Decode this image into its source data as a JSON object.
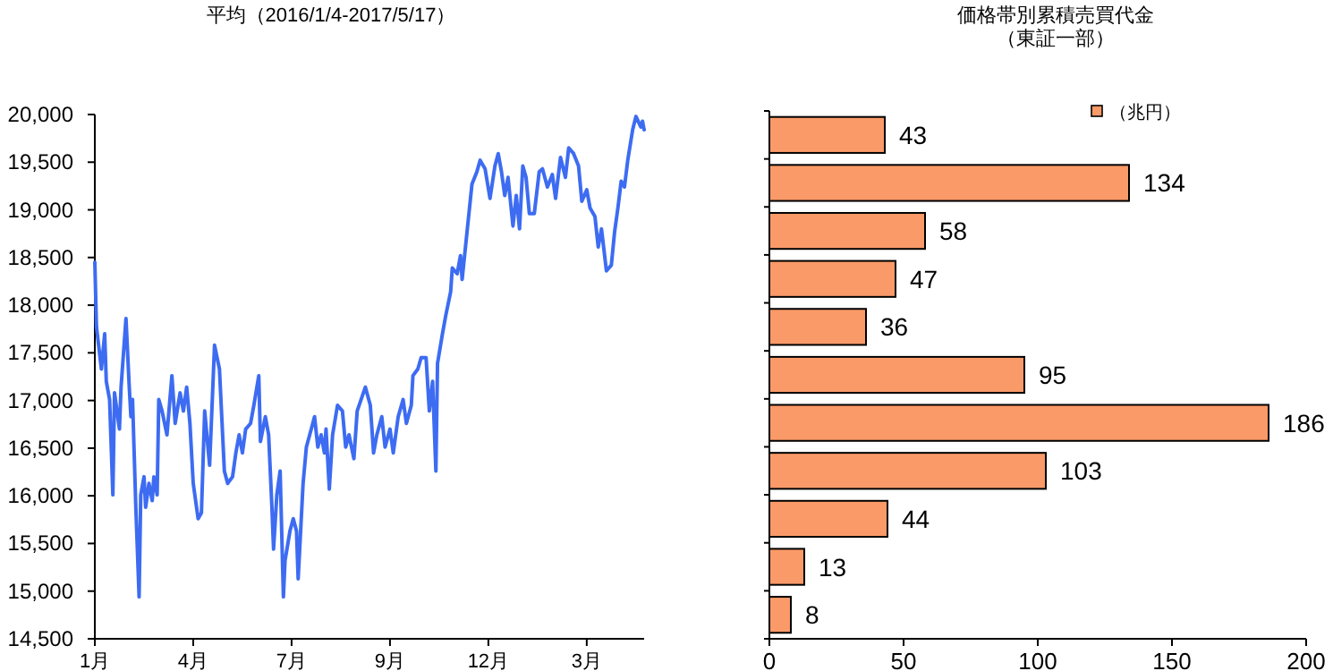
{
  "chart_data": [
    {
      "type": "line",
      "title": "平均（2016/1/4-2017/5/17）",
      "categories": [
        "1月",
        null,
        null,
        null,
        null,
        null,
        null,
        null,
        null,
        null,
        null,
        null,
        null,
        null,
        null,
        null,
        null,
        null,
        null,
        null,
        null,
        null,
        null,
        null,
        null,
        null,
        null,
        null,
        null,
        null,
        null,
        null,
        null,
        null,
        null,
        null,
        null,
        null,
        null,
        null,
        null,
        null,
        null,
        null,
        null,
        null,
        null,
        null,
        null,
        null,
        null,
        null,
        null,
        null,
        null,
        null,
        null,
        null,
        null,
        null,
        "4月",
        null,
        null,
        null,
        null,
        null,
        null,
        null,
        null,
        null,
        null,
        null,
        null,
        null,
        null,
        null,
        null,
        null,
        null,
        null,
        null,
        null,
        null,
        null,
        null,
        null,
        null,
        null,
        null,
        null,
        null,
        null,
        null,
        null,
        null,
        null,
        null,
        null,
        null,
        null,
        null,
        null,
        null,
        null,
        null,
        null,
        null,
        null,
        null,
        null,
        null,
        null,
        null,
        null,
        null,
        null,
        null,
        null,
        null,
        null,
        "7月",
        null,
        null,
        null,
        null,
        null,
        null,
        null,
        null,
        null,
        null,
        null,
        null,
        null,
        null,
        null,
        null,
        null,
        null,
        null,
        null,
        null,
        null,
        null,
        null,
        null,
        null,
        null,
        null,
        null,
        null,
        null,
        null,
        null,
        null,
        null,
        null,
        null,
        null,
        null,
        null,
        null,
        null,
        null,
        null,
        null,
        null,
        null,
        null,
        null,
        null,
        null,
        null,
        null,
        null,
        null,
        null,
        null,
        null,
        null,
        "9月",
        null,
        null,
        null,
        null,
        null,
        null,
        null,
        null,
        null,
        null,
        null,
        null,
        null,
        null,
        null,
        null,
        null,
        null,
        null,
        null,
        null,
        null,
        null,
        null,
        null,
        null,
        null,
        null,
        null,
        null,
        null,
        null,
        null,
        null,
        null,
        null,
        null,
        null,
        null,
        null,
        null,
        null,
        null,
        null,
        null,
        null,
        null,
        null,
        null,
        null,
        null,
        null,
        null,
        null,
        null,
        null,
        null,
        null,
        null,
        "12月",
        null,
        null,
        null,
        null,
        null,
        null,
        null,
        null,
        null,
        null,
        null,
        null,
        null,
        null,
        null,
        null,
        null,
        null,
        null,
        null,
        null,
        null,
        null,
        null,
        null,
        null,
        null,
        null,
        null,
        null,
        null,
        null,
        null,
        null,
        null,
        null,
        null,
        null,
        null,
        null,
        null,
        null,
        null,
        null,
        null,
        null,
        null,
        null,
        null,
        null,
        null,
        null,
        null,
        null,
        null,
        null,
        null,
        null,
        null,
        "3月",
        null,
        null,
        null,
        null,
        null,
        null,
        null,
        null,
        null,
        null,
        null,
        null,
        null,
        null,
        null,
        null,
        null,
        null,
        null,
        null,
        null,
        null,
        null,
        null,
        null,
        null,
        null,
        null,
        null,
        null,
        null,
        null,
        null,
        null,
        null
      ],
      "series": [
        {
          "color": "#3d6cf2",
          "values": [
            18450,
            17770,
            null,
            null,
            17330,
            null,
            17700,
            17200,
            null,
            17010,
            null,
            16010,
            17080,
            null,
            null,
            16700,
            17140,
            null,
            null,
            17860,
            null,
            17140,
            16830,
            17010,
            null,
            15880,
            null,
            14940,
            16010,
            null,
            16200,
            15880,
            null,
            16130,
            null,
            15950,
            16200,
            null,
            16010,
            17010,
            null,
            16890,
            null,
            null,
            16640,
            null,
            null,
            17260,
            null,
            16760,
            null,
            null,
            17080,
            null,
            16890,
            null,
            17140,
            null,
            16760,
            null,
            16130,
            null,
            null,
            15760,
            null,
            15820,
            null,
            16890,
            null,
            null,
            16320,
            null,
            null,
            17580,
            null,
            null,
            17330,
            null,
            null,
            16260,
            null,
            16130,
            null,
            null,
            16200,
            null,
            16450,
            null,
            16640,
            null,
            16450,
            null,
            16700,
            null,
            null,
            16760,
            null,
            16950,
            null,
            null,
            17260,
            16570,
            null,
            null,
            16830,
            null,
            16640,
            null,
            15880,
            15440,
            null,
            16010,
            null,
            16260,
            null,
            14940,
            15320,
            null,
            null,
            15630,
            null,
            15760,
            null,
            15630,
            15130,
            null,
            null,
            16130,
            null,
            16510,
            null,
            null,
            16700,
            null,
            16830,
            null,
            16510,
            null,
            16640,
            null,
            16450,
            16700,
            null,
            16070,
            null,
            16640,
            null,
            null,
            16950,
            null,
            null,
            16890,
            null,
            16510,
            null,
            16640,
            null,
            null,
            16390,
            null,
            16890,
            null,
            null,
            null,
            null,
            17140,
            null,
            null,
            16950,
            null,
            16450,
            null,
            16640,
            null,
            null,
            16830,
            null,
            16510,
            null,
            null,
            16700,
            null,
            16450,
            null,
            null,
            16830,
            null,
            null,
            17010,
            null,
            16760,
            null,
            null,
            16950,
            17260,
            null,
            null,
            17330,
            null,
            17450,
            null,
            null,
            17450,
            null,
            16890,
            null,
            17200,
            null,
            16260,
            17390,
            null,
            null,
            17700,
            null,
            17890,
            null,
            null,
            18140,
            18390,
            null,
            null,
            18330,
            null,
            18520,
            18270,
            null,
            null,
            18770,
            null,
            null,
            19270,
            null,
            null,
            19400,
            null,
            19520,
            null,
            null,
            19430,
            null,
            null,
            19120,
            null,
            null,
            19460,
            null,
            19590,
            null,
            19400,
            null,
            19150,
            null,
            19340,
            null,
            null,
            18830,
            null,
            19150,
            null,
            18800,
            null,
            19460,
            null,
            19340,
            null,
            18960,
            null,
            null,
            18960,
            null,
            null,
            19400,
            null,
            19430,
            null,
            null,
            19240,
            null,
            null,
            19370,
            null,
            19120,
            null,
            null,
            19550,
            null,
            null,
            19340,
            null,
            19650,
            null,
            null,
            19590,
            null,
            null,
            19460,
            null,
            19090,
            null,
            null,
            19210,
            null,
            19020,
            null,
            null,
            18930,
            null,
            18610,
            null,
            18800,
            null,
            null,
            18360,
            null,
            null,
            18420,
            null,
            18770,
            null,
            19020,
            null,
            19300,
            null,
            19240,
            null,
            19520,
            null,
            null,
            19840,
            null,
            19980,
            null,
            null,
            19870,
            19930,
            19840
          ]
        }
      ],
      "ylim": [
        14500,
        20000
      ],
      "yticks": [
        {
          "value": 14500,
          "label": "14,500"
        },
        {
          "value": 15000,
          "label": "15,000"
        },
        {
          "value": 15500,
          "label": "15,500"
        },
        {
          "value": 16000,
          "label": "16,000"
        },
        {
          "value": 16500,
          "label": "16,500"
        },
        {
          "value": 17000,
          "label": "17,000"
        },
        {
          "value": 17500,
          "label": "17,500"
        },
        {
          "value": 18000,
          "label": "18,000"
        },
        {
          "value": 18500,
          "label": "18,500"
        },
        {
          "value": 19000,
          "label": "19,000"
        },
        {
          "value": 19500,
          "label": "19,500"
        },
        {
          "value": 20000,
          "label": "20,000"
        }
      ]
    },
    {
      "type": "bar",
      "orientation": "horizontal",
      "title": "価格帯別累積売買代金",
      "subtitle": "（東証一部）",
      "categories": [
        null,
        null,
        null,
        null,
        null,
        null,
        null,
        null,
        null,
        null,
        null
      ],
      "series": [
        {
          "name": "（兆円）",
          "color": "#fa9a68",
          "values": [
            43,
            134,
            58,
            47,
            36,
            95,
            186,
            103,
            44,
            13,
            8
          ]
        }
      ],
      "xlim": [
        0,
        200
      ],
      "xticks": [
        0,
        50,
        100,
        150,
        200
      ],
      "data_labels": true,
      "legend": "top right"
    }
  ]
}
